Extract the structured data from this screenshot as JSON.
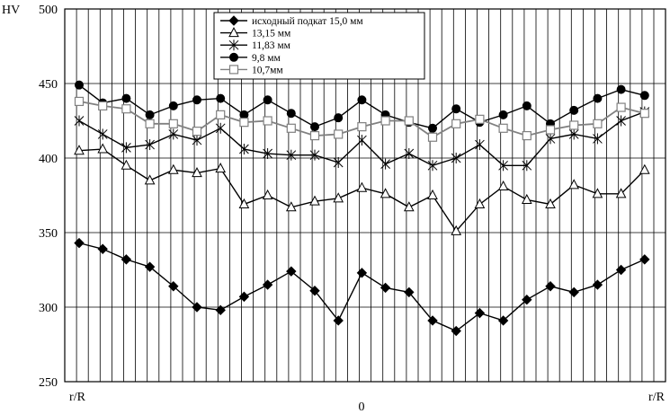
{
  "chart_data": {
    "type": "line",
    "ylabel": "HV",
    "xlabel": "",
    "x_tick_labels": [
      "r/R",
      "0",
      "r/R"
    ],
    "ylim": [
      250,
      500
    ],
    "yticks": [
      250,
      300,
      350,
      400,
      450,
      500
    ],
    "grid": true,
    "legend_position": "top-center",
    "x": [
      1,
      2,
      3,
      4,
      5,
      6,
      7,
      8,
      9,
      10,
      11,
      12,
      13,
      14,
      15,
      16,
      17,
      18,
      19,
      20,
      21,
      22,
      23,
      24,
      25
    ],
    "series": [
      {
        "name": "исходный подкат 15,0 мм",
        "marker": "diamond-filled",
        "color": "#000000",
        "values": [
          343,
          339,
          332,
          327,
          314,
          300,
          298,
          307,
          315,
          324,
          311,
          291,
          323,
          313,
          310,
          291,
          284,
          296,
          291,
          305,
          314,
          310,
          315,
          325,
          332
        ]
      },
      {
        "name": "13,15 мм",
        "marker": "triangle-open",
        "color": "#000000",
        "values": [
          405,
          406,
          395,
          385,
          392,
          390,
          393,
          369,
          375,
          367,
          371,
          373,
          380,
          376,
          367,
          375,
          351,
          369,
          381,
          372,
          369,
          382,
          376,
          376,
          392
        ]
      },
      {
        "name": "11,83 мм",
        "marker": "star",
        "color": "#000000",
        "values": [
          425,
          416,
          407,
          409,
          416,
          412,
          420,
          406,
          403,
          402,
          402,
          397,
          412,
          396,
          403,
          395,
          400,
          409,
          395,
          395,
          413,
          416,
          413,
          425,
          431
        ]
      },
      {
        "name": "9,8 мм",
        "marker": "circle-filled",
        "color": "#000000",
        "values": [
          449,
          437,
          440,
          429,
          435,
          439,
          440,
          429,
          439,
          430,
          421,
          427,
          439,
          429,
          424,
          420,
          433,
          424,
          429,
          435,
          423,
          432,
          440,
          446,
          442
        ]
      },
      {
        "name": "10,7мм",
        "marker": "square-open",
        "color": "#808080",
        "values": [
          438,
          435,
          433,
          423,
          423,
          418,
          429,
          424,
          425,
          420,
          415,
          416,
          421,
          425,
          425,
          414,
          423,
          426,
          420,
          415,
          419,
          422,
          423,
          434,
          430
        ]
      }
    ]
  }
}
